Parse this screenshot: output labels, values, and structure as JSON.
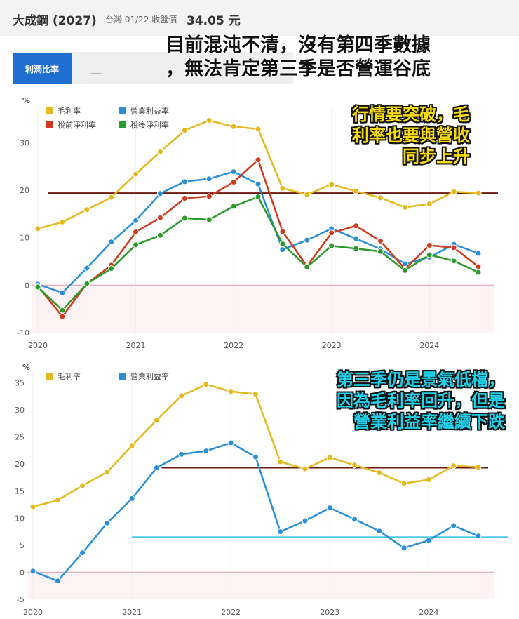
{
  "header": {
    "stock_name": "大成鋼 (2027)",
    "meta": "台灣 01/22 收盤價",
    "price": "34.05 元"
  },
  "tabs": {
    "active_label": "利潤比率"
  },
  "annotations": {
    "top_lines": [
      "目前混沌不清，沒有第四季數據",
      "，無法肯定第三季是否營運谷底"
    ],
    "yellow_lines": [
      "行情要突破，毛",
      "利率也要與營收",
      "同步上升"
    ],
    "cyan_lines": [
      "第三季仍是景氣低檔，",
      "因為毛利率回升，但是",
      "營業利益率繼續下跌"
    ]
  },
  "colors": {
    "gross": "#e5b81e",
    "operating": "#2a8ed8",
    "pretax": "#cf3b1d",
    "aftertax": "#2a9a2a",
    "ref_brown": "#6b1a0e",
    "ref_cyan": "#4fc8ee",
    "zero_line": "#e8b4bf",
    "neg_band": "#fdf2f4"
  },
  "chart_data": [
    {
      "type": "line",
      "y_unit": "%",
      "xlim": [
        2020,
        2024.6
      ],
      "ylim": [
        -10,
        37
      ],
      "yticks": [
        -10,
        0,
        10,
        20,
        30
      ],
      "xticks": [
        2020,
        2021,
        2022,
        2023,
        2024
      ],
      "legend": "top-left",
      "x": [
        2020,
        2020.25,
        2020.5,
        2020.75,
        2021,
        2021.25,
        2021.5,
        2021.75,
        2022,
        2022.25,
        2022.5,
        2022.75,
        2023,
        2023.25,
        2023.5,
        2023.75,
        2024,
        2024.25,
        2024.5
      ],
      "series": [
        {
          "name": "毛利率",
          "color_key": "gross",
          "values": [
            11.9,
            13.3,
            15.9,
            18.5,
            23.4,
            28.1,
            32.6,
            34.7,
            33.4,
            32.9,
            20.4,
            19.1,
            21.2,
            19.8,
            18.4,
            16.4,
            17.1,
            19.7,
            19.4
          ]
        },
        {
          "name": "營業利益率",
          "color_key": "operating",
          "values": [
            0.2,
            -1.6,
            3.6,
            9.1,
            13.6,
            19.3,
            21.8,
            22.4,
            23.9,
            21.3,
            7.5,
            9.5,
            11.9,
            9.8,
            7.6,
            4.5,
            5.9,
            8.6,
            6.7
          ]
        },
        {
          "name": "稅前淨利率",
          "color_key": "pretax",
          "values": [
            -0.2,
            -6.6,
            0.3,
            4.2,
            11.2,
            14.2,
            18.3,
            18.7,
            21.7,
            26.4,
            11.3,
            4.0,
            11.0,
            12.5,
            9.3,
            3.4,
            8.4,
            7.9,
            3.9
          ]
        },
        {
          "name": "稅後淨利率",
          "color_key": "aftertax",
          "values": [
            -0.4,
            -5.3,
            0.3,
            3.5,
            8.5,
            10.5,
            14.1,
            13.8,
            16.6,
            18.6,
            8.7,
            3.8,
            8.3,
            7.7,
            7.1,
            3.1,
            6.4,
            5.1,
            2.7
          ]
        }
      ],
      "reference_lines": [
        {
          "value": 19.4,
          "color_key": "ref_brown",
          "from": 2020.1,
          "to": 2024.7
        }
      ]
    },
    {
      "type": "line",
      "y_unit": "%",
      "xlim": [
        2020,
        2024.6
      ],
      "ylim": [
        -5,
        37
      ],
      "yticks": [
        -5,
        0,
        5,
        10,
        15,
        20,
        25,
        30,
        35
      ],
      "xticks": [
        2020,
        2021,
        2022,
        2023,
        2024
      ],
      "legend": "top-left",
      "x": [
        2020,
        2020.25,
        2020.5,
        2020.75,
        2021,
        2021.25,
        2021.5,
        2021.75,
        2022,
        2022.25,
        2022.5,
        2022.75,
        2023,
        2023.25,
        2023.5,
        2023.75,
        2024,
        2024.25,
        2024.5
      ],
      "series": [
        {
          "name": "毛利率",
          "color_key": "gross",
          "values": [
            12.1,
            13.3,
            16.0,
            18.5,
            23.4,
            28.1,
            32.6,
            34.7,
            33.4,
            32.9,
            20.4,
            19.1,
            21.2,
            19.8,
            18.4,
            16.4,
            17.1,
            19.7,
            19.4
          ]
        },
        {
          "name": "營業利益率",
          "color_key": "operating",
          "values": [
            0.2,
            -1.6,
            3.6,
            9.1,
            13.6,
            19.3,
            21.8,
            22.4,
            23.9,
            21.3,
            7.5,
            9.5,
            11.9,
            9.8,
            7.6,
            4.5,
            5.9,
            8.6,
            6.7
          ]
        }
      ],
      "reference_lines": [
        {
          "value": 19.3,
          "color_key": "ref_brown",
          "from": 2021.3,
          "to": 2024.6
        },
        {
          "value": 6.5,
          "color_key": "ref_cyan",
          "from": 2021.0,
          "to": 2024.8
        }
      ]
    }
  ]
}
